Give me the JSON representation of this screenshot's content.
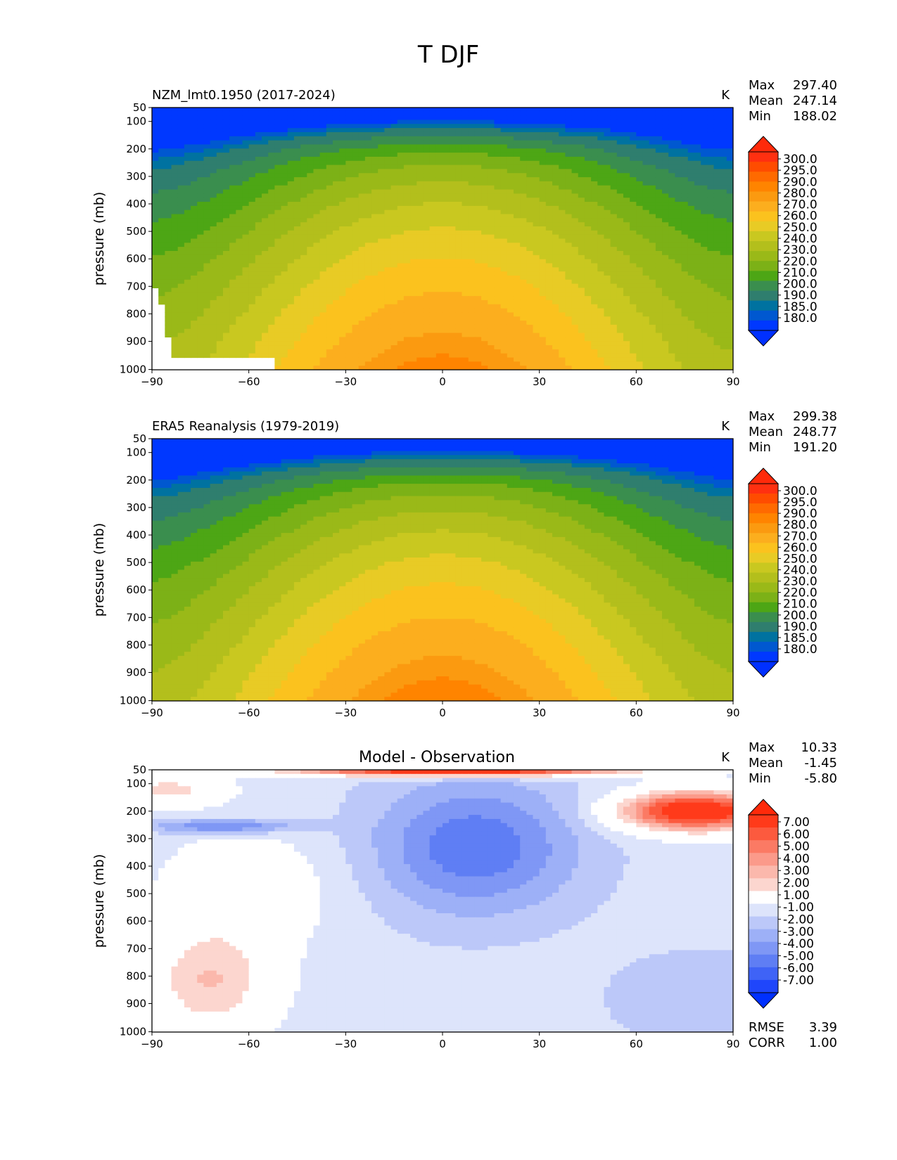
{
  "figure": {
    "title": "T DJF"
  },
  "chart_data": [
    {
      "type": "heatmap",
      "panel": "model",
      "title_left": "NZM_lmt0.1950 (2017-2024)",
      "title_center": "",
      "units": "K",
      "xlabel": "",
      "ylabel": "pressure (mb)",
      "xlim": [
        -90,
        90
      ],
      "ylim": [
        1000,
        50
      ],
      "x_ticks": [
        "−90",
        "−60",
        "−30",
        "0",
        "30",
        "60",
        "90"
      ],
      "y_ticks": [
        "50",
        "100",
        "200",
        "300",
        "400",
        "500",
        "600",
        "700",
        "800",
        "900",
        "1000"
      ],
      "stats": [
        {
          "label": "Max",
          "value": "297.40"
        },
        {
          "label": "Mean",
          "value": "247.14"
        },
        {
          "label": "Min",
          "value": "188.02"
        }
      ],
      "colorbar": {
        "labels": [
          "300.0",
          "295.0",
          "290.0",
          "280.0",
          "270.0",
          "260.0",
          "250.0",
          "240.0",
          "230.0",
          "220.0",
          "210.0",
          "200.0",
          "190.0",
          "185.0",
          "180.0"
        ],
        "colors": [
          "#ff3010",
          "#ff4c00",
          "#ff6a00",
          "#ff8400",
          "#fb9a10",
          "#fcae1e",
          "#fbc21e",
          "#e8cb25",
          "#c9c820",
          "#b3bf1c",
          "#9ab918",
          "#7cb117",
          "#4da615",
          "#3a8e4e",
          "#2f7e6e",
          "#0072a0",
          "#0058d0",
          "#0038ff"
        ],
        "top_color": "#ff2a0a",
        "bottom_color": "#0030ff"
      },
      "field": "Zonal mean air temperature, warmest (~297 K) near surface at equator, coldest (~188 K) near 100 mb over the tropics; masked below surface at 90S-50S near 950-1000 mb."
    },
    {
      "type": "heatmap",
      "panel": "observation",
      "title_left": "ERA5 Reanalysis (1979-2019)",
      "title_center": "",
      "units": "K",
      "xlabel": "",
      "ylabel": "pressure (mb)",
      "xlim": [
        -90,
        90
      ],
      "ylim": [
        1000,
        50
      ],
      "x_ticks": [
        "−90",
        "−60",
        "−30",
        "0",
        "30",
        "60",
        "90"
      ],
      "y_ticks": [
        "50",
        "100",
        "200",
        "300",
        "400",
        "500",
        "600",
        "700",
        "800",
        "900",
        "1000"
      ],
      "stats": [
        {
          "label": "Max",
          "value": "299.38"
        },
        {
          "label": "Mean",
          "value": "248.77"
        },
        {
          "label": "Min",
          "value": "191.20"
        }
      ],
      "colorbar": {
        "labels": [
          "300.0",
          "295.0",
          "290.0",
          "280.0",
          "270.0",
          "260.0",
          "250.0",
          "240.0",
          "230.0",
          "220.0",
          "210.0",
          "200.0",
          "190.0",
          "185.0",
          "180.0"
        ],
        "colors": [
          "#ff3010",
          "#ff4c00",
          "#ff6a00",
          "#ff8400",
          "#fb9a10",
          "#fcae1e",
          "#fbc21e",
          "#e8cb25",
          "#c9c820",
          "#b3bf1c",
          "#9ab918",
          "#7cb117",
          "#4da615",
          "#3a8e4e",
          "#2f7e6e",
          "#0072a0",
          "#0058d0",
          "#0038ff"
        ],
        "top_color": "#ff2a0a",
        "bottom_color": "#0030ff"
      },
      "field": "Zonal mean air temperature from reanalysis, warmest (~299 K) near surface at equator, coldest (~191 K) near 100 mb over the tropics."
    },
    {
      "type": "heatmap",
      "panel": "difference",
      "title_left": "",
      "title_center": "Model - Observation",
      "units": "K",
      "xlabel": "",
      "ylabel": "pressure (mb)",
      "xlim": [
        -90,
        90
      ],
      "ylim": [
        1000,
        50
      ],
      "x_ticks": [
        "−90",
        "−60",
        "−30",
        "0",
        "30",
        "60",
        "90"
      ],
      "y_ticks": [
        "50",
        "100",
        "200",
        "300",
        "400",
        "500",
        "600",
        "700",
        "800",
        "900",
        "1000"
      ],
      "stats": [
        {
          "label": "Max",
          "value": "10.33"
        },
        {
          "label": "Mean",
          "value": "-1.45"
        },
        {
          "label": "Min",
          "value": "-5.80"
        }
      ],
      "extra_stats": [
        {
          "label": "RMSE",
          "value": "3.39"
        },
        {
          "label": "CORR",
          "value": "1.00"
        }
      ],
      "colorbar": {
        "labels": [
          "7.00",
          "6.00",
          "5.00",
          "4.00",
          "3.00",
          "2.00",
          "1.00",
          "-1.00",
          "-2.00",
          "-3.00",
          "-4.00",
          "-5.00",
          "-6.00",
          "-7.00"
        ],
        "colors": [
          "#ff3a1a",
          "#fc5a3e",
          "#fb7a64",
          "#fb9a8a",
          "#fbb8ac",
          "#fcd6cf",
          "#ffffff",
          "#dde4fb",
          "#bcc8f9",
          "#9db0f7",
          "#7f97f5",
          "#5f7ef4",
          "#3f63f6",
          "#1f46fb"
        ],
        "top_color": "#ff2a0a",
        "bottom_color": "#0030ff"
      },
      "field": "Temperature bias: warm bias up to ~10 K near 50 mb at the equator and near 200 mb at 60N-90N; cold bias (~-4 to -6 K) through the tropical troposphere and near 250 mb at 80S-60S."
    }
  ]
}
